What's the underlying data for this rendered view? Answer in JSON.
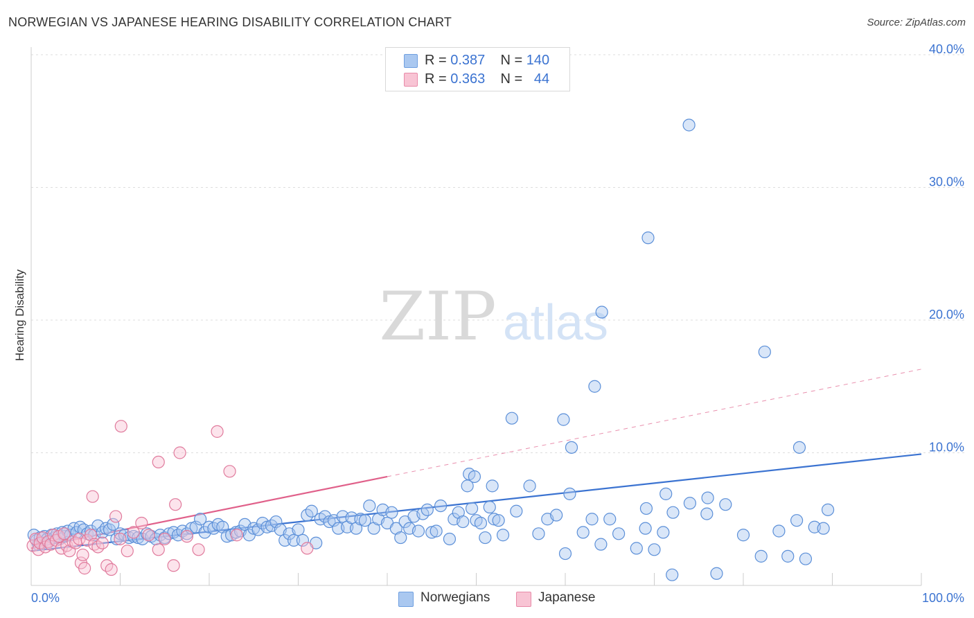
{
  "header": {
    "title": "NORWEGIAN VS JAPANESE HEARING DISABILITY CORRELATION CHART",
    "source": "Source: ZipAtlas.com"
  },
  "watermark": {
    "zip": "ZIP",
    "atlas": "atlas"
  },
  "legend": {
    "rows": [
      {
        "r_label": "R =",
        "r_value": "0.387",
        "n_label": "N =",
        "n_value": "140",
        "color": "#aac8f0",
        "border": "#6f9fe0"
      },
      {
        "r_label": "R =",
        "r_value": "0.363",
        "n_label": "N =",
        "n_value": "44",
        "color": "#f8c4d4",
        "border": "#e88aa8"
      }
    ]
  },
  "bottom_legend": [
    {
      "label": "Norwegians",
      "color": "#aac8f0",
      "border": "#6f9fe0"
    },
    {
      "label": "Japanese",
      "color": "#f8c4d4",
      "border": "#e88aa8"
    }
  ],
  "chart_data": {
    "type": "scatter",
    "title": "NORWEGIAN VS JAPANESE HEARING DISABILITY CORRELATION CHART",
    "xlabel": "",
    "ylabel": "Hearing Disability",
    "xlim": [
      0,
      100
    ],
    "ylim": [
      0,
      41
    ],
    "x_tick_labels": [
      "0.0%",
      "100.0%"
    ],
    "y_ticks": [
      10,
      20,
      30,
      40
    ],
    "y_tick_labels": [
      "10.0%",
      "20.0%",
      "30.0%",
      "40.0%"
    ],
    "grid": true,
    "colors": {
      "norwegians": "#3b73d1",
      "japanese": "#e0608a",
      "axis_labels": "#3b73d1"
    },
    "series": [
      {
        "name": "Norwegians",
        "r": 0.387,
        "n": 140,
        "trend": {
          "x": [
            0,
            100
          ],
          "y": [
            2.6,
            9.9
          ]
        },
        "points": [
          [
            0.3,
            3.8
          ],
          [
            0.6,
            3.4
          ],
          [
            0.8,
            3.1
          ],
          [
            1.0,
            3.6
          ],
          [
            1.2,
            3.2
          ],
          [
            1.5,
            3.7
          ],
          [
            1.8,
            3.5
          ],
          [
            2.0,
            3.3
          ],
          [
            2.3,
            3.8
          ],
          [
            2.6,
            3.6
          ],
          [
            2.9,
            3.9
          ],
          [
            3.2,
            3.5
          ],
          [
            3.5,
            4.0
          ],
          [
            3.8,
            3.7
          ],
          [
            4.1,
            4.1
          ],
          [
            4.4,
            3.8
          ],
          [
            4.8,
            4.3
          ],
          [
            5.1,
            4.0
          ],
          [
            5.5,
            4.4
          ],
          [
            5.9,
            4.2
          ],
          [
            6.3,
            3.9
          ],
          [
            6.7,
            4.1
          ],
          [
            7.1,
            3.8
          ],
          [
            7.5,
            4.5
          ],
          [
            8.0,
            4.0
          ],
          [
            8.4,
            4.3
          ],
          [
            8.8,
            4.2
          ],
          [
            9.2,
            4.6
          ],
          [
            9.6,
            3.5
          ],
          [
            10.0,
            3.9
          ],
          [
            10.5,
            3.8
          ],
          [
            11.0,
            3.6
          ],
          [
            11.5,
            3.7
          ],
          [
            12.0,
            3.6
          ],
          [
            12.5,
            3.5
          ],
          [
            13.0,
            3.9
          ],
          [
            13.5,
            3.7
          ],
          [
            14.0,
            3.5
          ],
          [
            14.5,
            3.8
          ],
          [
            15.0,
            3.6
          ],
          [
            15.5,
            3.9
          ],
          [
            16.0,
            4.0
          ],
          [
            16.5,
            3.8
          ],
          [
            17.0,
            4.1
          ],
          [
            17.5,
            3.9
          ],
          [
            18.0,
            4.3
          ],
          [
            18.5,
            4.4
          ],
          [
            19.0,
            5.0
          ],
          [
            19.5,
            4.0
          ],
          [
            20.0,
            4.4
          ],
          [
            20.5,
            4.3
          ],
          [
            21.0,
            4.6
          ],
          [
            21.5,
            4.4
          ],
          [
            22.0,
            3.7
          ],
          [
            22.5,
            3.8
          ],
          [
            23.0,
            4.0
          ],
          [
            23.5,
            4.1
          ],
          [
            24.0,
            4.6
          ],
          [
            24.5,
            3.8
          ],
          [
            25.0,
            4.3
          ],
          [
            25.5,
            4.2
          ],
          [
            26.0,
            4.7
          ],
          [
            26.5,
            4.4
          ],
          [
            27.0,
            4.5
          ],
          [
            27.5,
            4.8
          ],
          [
            28.0,
            4.2
          ],
          [
            28.5,
            3.4
          ],
          [
            29.0,
            3.9
          ],
          [
            29.5,
            3.4
          ],
          [
            30.0,
            4.2
          ],
          [
            30.5,
            3.4
          ],
          [
            31.0,
            5.3
          ],
          [
            31.5,
            5.6
          ],
          [
            32.0,
            3.2
          ],
          [
            32.5,
            5.0
          ],
          [
            33.0,
            5.2
          ],
          [
            33.5,
            4.8
          ],
          [
            34.0,
            4.9
          ],
          [
            34.5,
            4.3
          ],
          [
            35.0,
            5.2
          ],
          [
            35.5,
            4.4
          ],
          [
            36.0,
            5.1
          ],
          [
            36.5,
            4.3
          ],
          [
            37.0,
            5.0
          ],
          [
            37.5,
            4.9
          ],
          [
            38.0,
            6.0
          ],
          [
            38.5,
            4.3
          ],
          [
            39.0,
            5.0
          ],
          [
            39.5,
            5.7
          ],
          [
            40.0,
            4.7
          ],
          [
            40.5,
            5.5
          ],
          [
            41.0,
            4.3
          ],
          [
            41.5,
            3.6
          ],
          [
            42.0,
            4.8
          ],
          [
            42.5,
            4.3
          ],
          [
            43.0,
            5.2
          ],
          [
            43.5,
            4.1
          ],
          [
            44.0,
            5.4
          ],
          [
            44.5,
            5.7
          ],
          [
            45.0,
            4.0
          ],
          [
            45.5,
            4.1
          ],
          [
            46.0,
            6.0
          ],
          [
            47.0,
            3.5
          ],
          [
            47.5,
            5.0
          ],
          [
            48.0,
            5.5
          ],
          [
            48.5,
            4.8
          ],
          [
            49.0,
            7.5
          ],
          [
            49.5,
            5.8
          ],
          [
            50.0,
            4.9
          ],
          [
            50.5,
            4.7
          ],
          [
            51.0,
            3.6
          ],
          [
            51.5,
            5.9
          ],
          [
            52.0,
            5.0
          ],
          [
            52.5,
            4.9
          ],
          [
            53.0,
            3.8
          ],
          [
            54.0,
            12.6
          ],
          [
            54.5,
            5.6
          ],
          [
            56.0,
            7.5
          ],
          [
            57.0,
            3.9
          ],
          [
            58.0,
            5.0
          ],
          [
            59.0,
            5.3
          ],
          [
            60.0,
            2.4
          ],
          [
            60.5,
            6.9
          ],
          [
            62.0,
            4.0
          ],
          [
            63.0,
            5.0
          ],
          [
            64.0,
            3.1
          ],
          [
            65.0,
            5.0
          ],
          [
            66.0,
            3.9
          ],
          [
            68.0,
            2.8
          ],
          [
            69.0,
            4.3
          ],
          [
            70.0,
            2.7
          ],
          [
            71.0,
            4.0
          ],
          [
            72.0,
            0.8
          ],
          [
            74.0,
            6.2
          ],
          [
            76.0,
            6.6
          ],
          [
            77.0,
            0.9
          ],
          [
            78.0,
            6.1
          ],
          [
            80.0,
            3.8
          ],
          [
            82.0,
            2.2
          ],
          [
            84.0,
            4.1
          ],
          [
            85.0,
            2.2
          ],
          [
            86.0,
            4.9
          ],
          [
            87.0,
            2.0
          ],
          [
            88.0,
            4.4
          ],
          [
            89.0,
            4.3
          ],
          [
            89.5,
            5.7
          ]
        ],
        "highlight_points": [
          [
            49.2,
            8.4
          ],
          [
            49.8,
            8.2
          ],
          [
            51.8,
            7.5
          ],
          [
            59.8,
            12.5
          ],
          [
            60.7,
            10.4
          ],
          [
            63.3,
            15.0
          ],
          [
            64.1,
            20.6
          ],
          [
            69.3,
            26.2
          ],
          [
            73.9,
            34.7
          ],
          [
            82.4,
            17.6
          ],
          [
            86.3,
            10.4
          ],
          [
            69.1,
            5.8
          ],
          [
            71.3,
            6.9
          ],
          [
            72.1,
            5.5
          ],
          [
            75.9,
            5.4
          ]
        ]
      },
      {
        "name": "Japanese",
        "r": 0.363,
        "n": 44,
        "trend": {
          "x": [
            0,
            40
          ],
          "y": [
            2.8,
            8.2
          ]
        },
        "trend_extension": {
          "x": [
            40,
            100
          ],
          "y": [
            8.2,
            16.3
          ]
        },
        "points": [
          [
            0.2,
            3.0
          ],
          [
            0.5,
            3.5
          ],
          [
            0.8,
            2.7
          ],
          [
            1.0,
            3.2
          ],
          [
            1.3,
            3.6
          ],
          [
            1.6,
            2.9
          ],
          [
            1.9,
            3.3
          ],
          [
            2.2,
            3.1
          ],
          [
            2.5,
            3.8
          ],
          [
            2.8,
            3.4
          ],
          [
            3.1,
            3.7
          ],
          [
            3.4,
            2.8
          ],
          [
            3.7,
            3.9
          ],
          [
            4.0,
            3.0
          ],
          [
            4.3,
            2.6
          ],
          [
            4.7,
            3.3
          ],
          [
            5.0,
            3.2
          ],
          [
            5.4,
            3.5
          ],
          [
            5.6,
            1.7
          ],
          [
            5.8,
            2.3
          ],
          [
            6.0,
            1.3
          ],
          [
            6.3,
            3.4
          ],
          [
            6.7,
            3.8
          ],
          [
            7.1,
            3.1
          ],
          [
            7.5,
            2.9
          ],
          [
            8.0,
            3.2
          ],
          [
            8.5,
            1.5
          ],
          [
            9.0,
            1.2
          ],
          [
            9.5,
            5.2
          ],
          [
            10.0,
            3.5
          ],
          [
            10.8,
            2.6
          ],
          [
            11.5,
            4.0
          ],
          [
            12.4,
            4.7
          ],
          [
            13.2,
            3.8
          ],
          [
            14.3,
            2.7
          ],
          [
            15.0,
            3.5
          ],
          [
            16.0,
            1.5
          ],
          [
            17.5,
            3.7
          ],
          [
            18.8,
            2.7
          ],
          [
            6.9,
            6.7
          ],
          [
            10.1,
            12.0
          ],
          [
            14.3,
            9.3
          ],
          [
            16.2,
            6.1
          ],
          [
            16.7,
            10.0
          ]
        ],
        "extra_points": [
          [
            20.9,
            11.6
          ],
          [
            22.3,
            8.6
          ],
          [
            23.1,
            3.8
          ],
          [
            31.0,
            2.8
          ]
        ]
      }
    ]
  }
}
